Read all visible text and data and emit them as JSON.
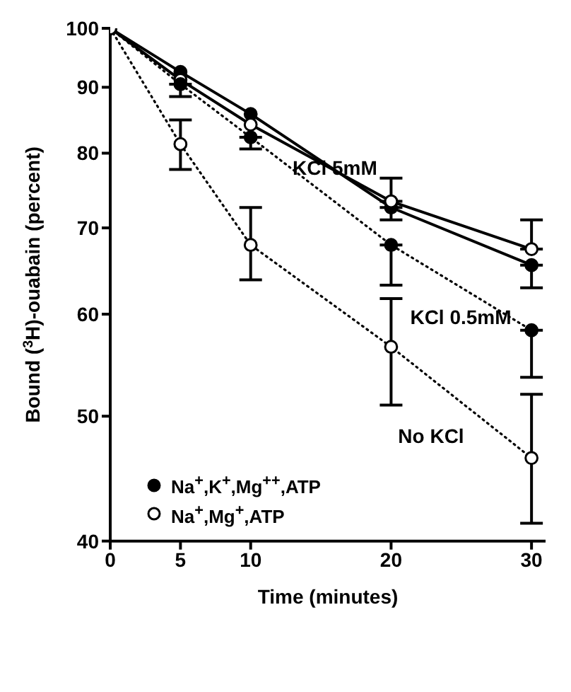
{
  "chart_data": {
    "type": "line",
    "xlabel": "Time (minutes)",
    "ylabel": "Bound ($^{3}$H)-ouabain (percent)",
    "x": [
      0,
      5,
      10,
      20,
      30
    ],
    "series": [
      {
        "name": "Na$^{+}$,K$^{+}$,Mg$^{++}$,ATP",
        "color": "#000000",
        "marker": "circle",
        "line_style": "solid",
        "values": [
          100,
          92.5,
          85.8,
          72.6,
          65.5
        ],
        "errors": [
          null,
          null,
          null,
          [
            71.0,
            72.6
          ],
          [
            62.9,
            65.5
          ]
        ]
      },
      {
        "name": "Na$^{+}$,Mg$^{+}$,ATP",
        "color": "#000000",
        "colors": [
          "#ffffff",
          "#ffffff",
          "#ffffff",
          "#ffffff",
          "#ffffff"
        ],
        "marker": "circle",
        "line_style": "solid",
        "values": [
          100,
          91.2,
          84.2,
          73.4,
          67.4
        ],
        "errors": [
          null,
          null,
          null,
          [
            73.4,
            76.5
          ],
          [
            67.4,
            71.0
          ]
        ]
      },
      {
        "color": "#000000",
        "marker": "circle",
        "line_style": "dotted",
        "values": [
          100,
          90.5,
          82.3,
          67.9,
          58.3
        ],
        "errors": [
          null,
          [
            88.5,
            90.5
          ],
          [
            80.6,
            82.3
          ],
          [
            63.2,
            67.9
          ],
          [
            53.6,
            58.3
          ]
        ]
      },
      {
        "color": "#000000",
        "colors": [
          "#ffffff",
          "#ffffff",
          "#ffffff",
          "#ffffff",
          "#ffffff"
        ],
        "marker": "circle",
        "line_style": "dotted",
        "values": [
          100,
          81.3,
          67.9,
          56.6,
          46.4
        ],
        "errors": [
          null,
          [
            77.7,
            84.9
          ],
          [
            63.8,
            72.6
          ],
          [
            51.0,
            61.7
          ],
          [
            41.3,
            52.0
          ]
        ]
      }
    ],
    "xlim": [
      0,
      31
    ],
    "xticks": [
      0,
      5,
      10,
      20,
      30
    ],
    "ylim": [
      40,
      100
    ],
    "yticks": [
      40,
      50,
      60,
      70,
      80,
      90,
      100
    ],
    "log": "y",
    "grid": false,
    "legend": "bottom left",
    "annotations": [
      {
        "text": "KCl 5mM",
        "x": 16,
        "y": 78
      },
      "KCl 0.5mM",
      "No KCl"
    ]
  }
}
